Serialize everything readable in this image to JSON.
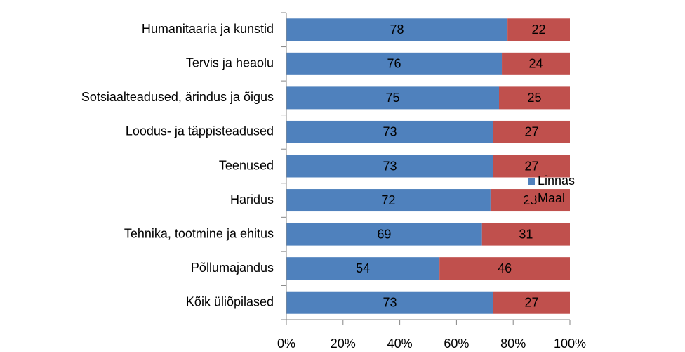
{
  "chart_data": {
    "type": "bar",
    "orientation": "horizontal",
    "stacked": true,
    "categories": [
      "Humanitaaria ja kunstid",
      "Tervis ja heaolu",
      "Sotsiaalteadused, ärindus ja õigus",
      "Loodus- ja täppisteadused",
      "Teenused",
      "Haridus",
      "Tehnika, tootmine ja ehitus",
      "Põllumajandus",
      "Kõik üliõpilased"
    ],
    "series": [
      {
        "name": "Linnas",
        "color": "#4f81bd",
        "values": [
          78,
          76,
          75,
          73,
          73,
          72,
          69,
          54,
          73
        ]
      },
      {
        "name": "Maal",
        "color": "#c0504d",
        "values": [
          22,
          24,
          25,
          27,
          27,
          28,
          31,
          46,
          27
        ]
      }
    ],
    "xlim": [
      0,
      100
    ],
    "xticks": [
      {
        "value": 0,
        "label": "0%"
      },
      {
        "value": 20,
        "label": "20%"
      },
      {
        "value": 40,
        "label": "40%"
      },
      {
        "value": 60,
        "label": "60%"
      },
      {
        "value": 80,
        "label": "80%"
      },
      {
        "value": 100,
        "label": "100%"
      }
    ],
    "legend": "right"
  }
}
